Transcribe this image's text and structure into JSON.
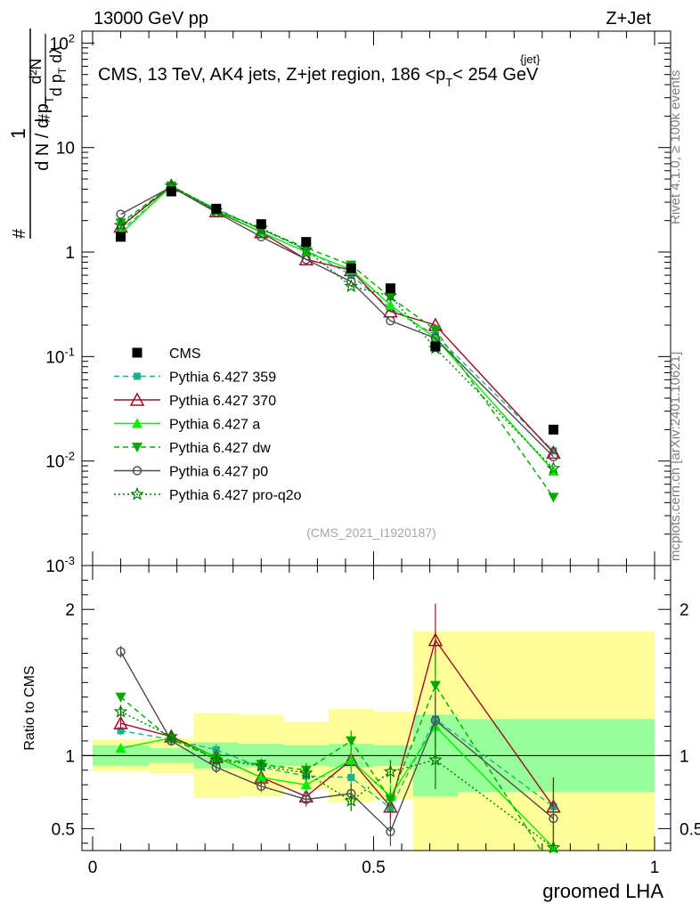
{
  "header": {
    "left_label": "13000 GeV pp",
    "right_label": "Z+Jet"
  },
  "side_labels": {
    "rivet": "Rivet 4.1.0, ≥ 100k events",
    "mcplots": "mcplots.cern.ch [arXiv:2401.10621]"
  },
  "chart_data": {
    "type": "line",
    "title": "CMS, 13 TeV, AK4 jets, Z+jet region, 186 <p",
    "title_sub": "T",
    "title_sup": "{jet}",
    "title_end": "< 254 GeV",
    "watermark": "(CMS_2021_I1920187)",
    "ylabel_main": "1/N dN/dp_T dλ",
    "ylabel_ratio": "Ratio to CMS",
    "xlabel": "groomed LHA",
    "xlim": [
      0,
      1
    ],
    "ylim_main": [
      0.001,
      130
    ],
    "ylim_ratio": [
      0.35,
      2.3
    ],
    "yscale_main": "log",
    "main_y_ticks": [
      "10^-3",
      "10^-2",
      "10^-1",
      "1",
      "10",
      "10^2"
    ],
    "main_y_tick_values": [
      0.001,
      0.01,
      0.1,
      1,
      10,
      100
    ],
    "ratio_y_ticks": [
      "0.5",
      "1",
      "2"
    ],
    "ratio_y_tick_values": [
      0.5,
      1,
      2
    ],
    "x_ticks": [
      "0",
      "0.5",
      "1"
    ],
    "x_tick_values": [
      0,
      0.5,
      1
    ],
    "x": [
      0.05,
      0.14,
      0.22,
      0.3,
      0.38,
      0.46,
      0.53,
      0.61,
      0.82
    ],
    "bin_edges": [
      0,
      0.1,
      0.18,
      0.26,
      0.34,
      0.42,
      0.5,
      0.57,
      0.65,
      1.0
    ],
    "reference": {
      "name": "CMS",
      "values": [
        1.4,
        3.8,
        2.6,
        1.85,
        1.25,
        0.7,
        0.45,
        0.125,
        0.02
      ],
      "ratio_band_inner": [
        0.07,
        0.05,
        0.09,
        0.08,
        0.07,
        0.08,
        0.07,
        0.28,
        0.25
      ],
      "ratio_band_outer": [
        0.11,
        0.12,
        0.29,
        0.28,
        0.23,
        0.32,
        0.3,
        0.85,
        0.85
      ]
    },
    "legend": [
      "CMS",
      "Pythia 6.427 359",
      "Pythia 6.427 370",
      "Pythia 6.427 a",
      "Pythia 6.427 dw",
      "Pythia 6.427 p0",
      "Pythia 6.427 pro-q2o"
    ],
    "series": [
      {
        "name": "Pythia 6.427 359",
        "color": "#19b28f",
        "style": "dashed",
        "marker": "square",
        "values": [
          1.6,
          4.2,
          2.6,
          1.65,
          1.05,
          0.6,
          0.29,
          0.16,
          0.0125
        ],
        "ratio": [
          1.17,
          1.11,
          1.04,
          0.92,
          0.86,
          0.85,
          0.64,
          1.25,
          0.65
        ],
        "ratio_err": [
          0.03,
          0.03,
          0.04,
          0.04,
          0.05,
          0.07,
          0.08,
          0.2,
          0.2
        ]
      },
      {
        "name": "Pythia 6.427 370",
        "color": "#99102a",
        "style": "solid",
        "marker": "triangle-open",
        "values": [
          1.75,
          4.3,
          2.45,
          1.55,
          0.85,
          0.67,
          0.27,
          0.2,
          0.012
        ],
        "ratio": [
          1.22,
          1.13,
          0.99,
          0.85,
          0.72,
          0.97,
          0.65,
          1.79,
          0.65
        ],
        "ratio_err": [
          0.03,
          0.03,
          0.04,
          0.05,
          0.05,
          0.07,
          0.08,
          0.25,
          0.2
        ]
      },
      {
        "name": "Pythia 6.427 a",
        "color": "#00ee00",
        "style": "solid",
        "marker": "triangle",
        "values": [
          1.5,
          4.3,
          2.5,
          1.55,
          1.0,
          0.68,
          0.31,
          0.15,
          0.008
        ],
        "ratio": [
          1.05,
          1.12,
          0.99,
          0.85,
          0.8,
          0.97,
          0.72,
          1.2,
          0.37
        ],
        "ratio_err": [
          0.03,
          0.03,
          0.04,
          0.04,
          0.05,
          0.07,
          0.08,
          0.2,
          0.15
        ]
      },
      {
        "name": "Pythia 6.427 dw",
        "color": "#00aa00",
        "style": "dashed",
        "marker": "triangle-down",
        "values": [
          1.9,
          4.3,
          2.55,
          1.65,
          1.1,
          0.75,
          0.37,
          0.18,
          0.0045
        ],
        "ratio": [
          1.4,
          1.11,
          0.98,
          0.94,
          0.9,
          1.1,
          0.7,
          1.48,
          0.22
        ],
        "ratio_err": [
          0.03,
          0.03,
          0.04,
          0.04,
          0.05,
          0.07,
          0.08,
          0.2,
          0.15
        ]
      },
      {
        "name": "Pythia 6.427 p0",
        "color": "#4d4d4d",
        "style": "solid",
        "marker": "circle-open",
        "values": [
          2.3,
          4.2,
          2.4,
          1.4,
          0.85,
          0.52,
          0.22,
          0.15,
          0.011
        ],
        "ratio": [
          1.71,
          1.1,
          0.92,
          0.79,
          0.7,
          0.74,
          0.48,
          1.24,
          0.57
        ],
        "ratio_err": [
          0.04,
          0.03,
          0.04,
          0.04,
          0.05,
          0.07,
          0.1,
          0.2,
          0.2
        ]
      },
      {
        "name": "Pythia 6.427 pro-q2o",
        "color": "#007700",
        "style": "dotted",
        "marker": "star",
        "values": [
          1.8,
          4.3,
          2.5,
          1.7,
          1.05,
          0.47,
          0.38,
          0.12,
          0.0085
        ],
        "ratio": [
          1.3,
          1.13,
          0.97,
          0.93,
          0.88,
          0.69,
          0.89,
          0.97,
          0.37
        ],
        "ratio_err": [
          0.03,
          0.03,
          0.04,
          0.04,
          0.05,
          0.07,
          0.08,
          0.2,
          0.15
        ]
      }
    ]
  }
}
